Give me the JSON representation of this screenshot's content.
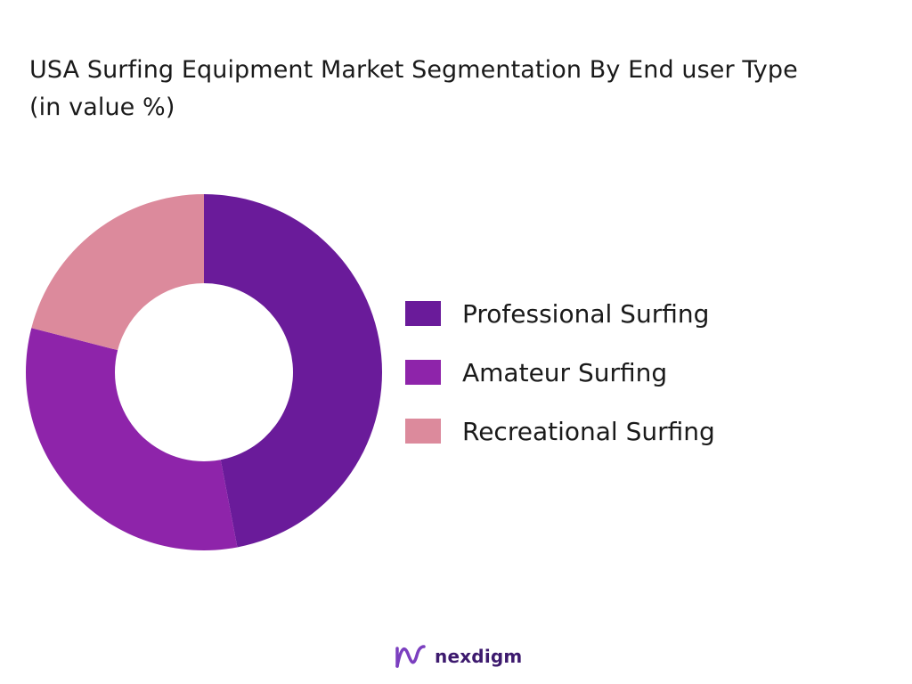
{
  "chart_data": {
    "type": "pie",
    "donut": true,
    "title_lines": [
      "USA Surfing Equipment Market Segmentation By End user Type",
      "(in value %)"
    ],
    "categories": [
      "Professional Surfing",
      "Amateur Surfing",
      "Recreational Surfing"
    ],
    "values": [
      47,
      32,
      21
    ],
    "colors": [
      "#6a1b9a",
      "#8e24aa",
      "#dc8a9c"
    ],
    "legend_position": "right"
  },
  "brand": {
    "name": "nexdigm",
    "logo_icon": "nexdigm-logo-icon",
    "logo_color": "#7b3fbf"
  }
}
